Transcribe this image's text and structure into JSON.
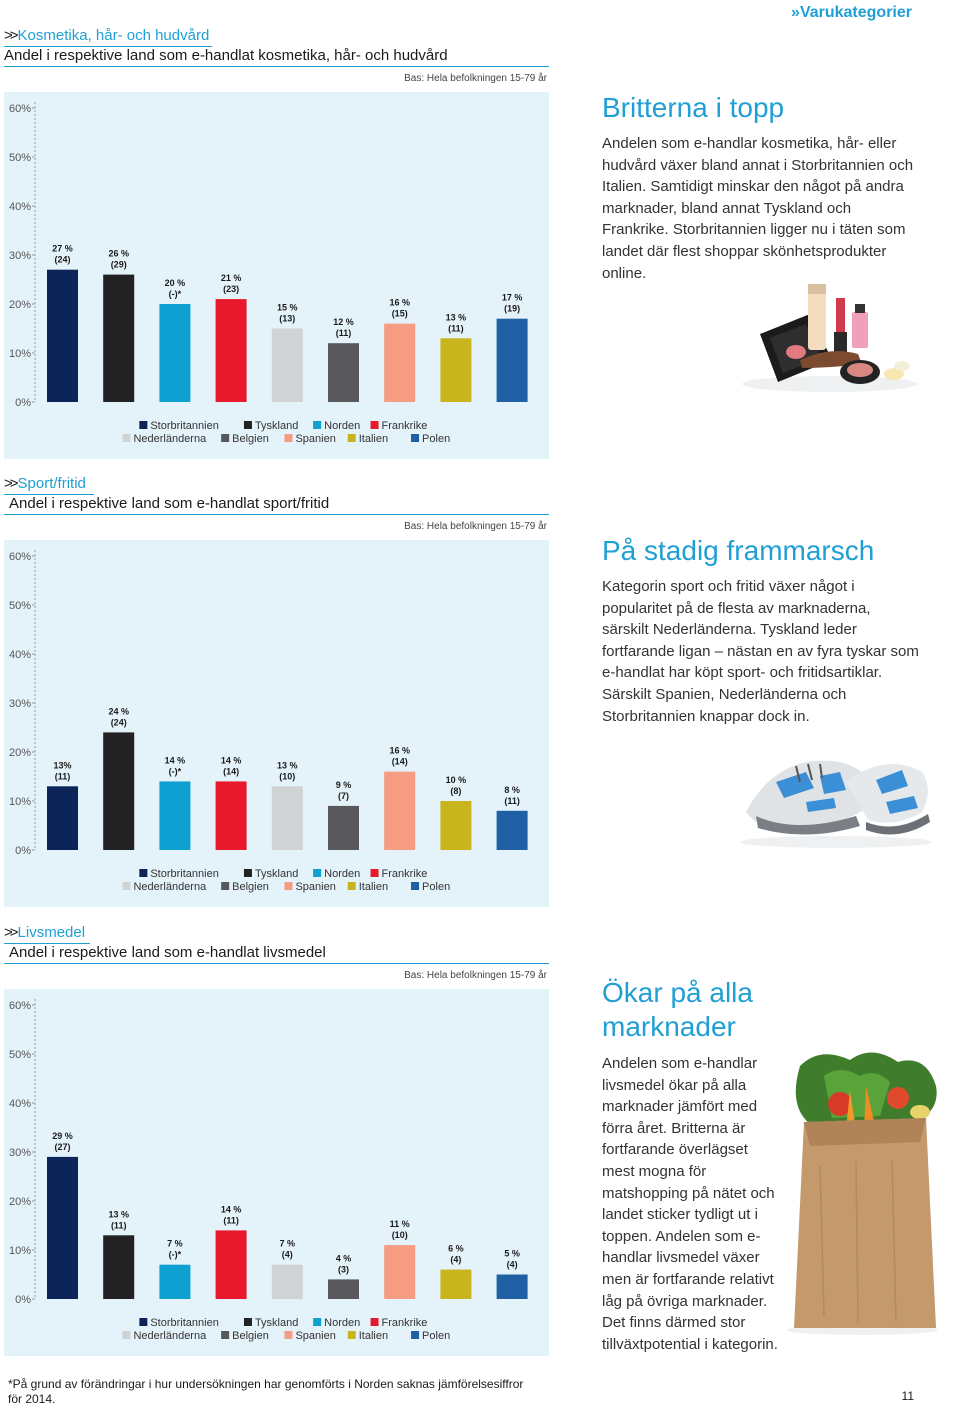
{
  "header": {
    "category": "Varukategorier"
  },
  "legend_rows": [
    [
      "Storbritannien",
      "Tyskland",
      "Norden",
      "Frankrike"
    ],
    [
      "Nederländerna",
      "Belgien",
      "Spanien",
      "Italien",
      "Polen"
    ]
  ],
  "colors": {
    "Storbritannien": "#0c2457",
    "Tyskland": "#222222",
    "Norden": "#0ea0d0",
    "Frankrike": "#e8192c",
    "Nederländerna": "#d0d2d4",
    "Belgien": "#58585a",
    "Spanien": "#f59c83",
    "Italien": "#c8b41c",
    "Polen": "#1f5fa3"
  },
  "sections": [
    {
      "title": "Kosmetika, hår- och hudvård",
      "subtitle": "Andel i respektive land som e-handlat kosmetika, hår- och hudvård",
      "heading": "Britterna i topp",
      "body": "Andelen som e-handlar kosmetika, hår- eller hudvård växer bland annat i Storbritannien och Italien. Samtidigt minskar den något på andra marknader, bland annat Tyskland och Frankrike. Storbritannien ligger nu i täten som landet där flest shoppar skönhetsprodukter online."
    },
    {
      "title": "Sport/fritid",
      "subtitle": "Andel i respektive land som e-handlat sport/fritid",
      "heading": "På stadig frammarsch",
      "body": "Kategorin sport och fritid växer något i popularitet på de flesta av marknaderna, särskilt Nederländerna. Tyskland leder fortfarande ligan – nästan en av fyra tyskar som e-handlat har köpt sport- och fritidsartiklar. Särskilt Spanien, Nederländerna och Storbritannien knappar dock in."
    },
    {
      "title": "Livsmedel",
      "subtitle": "Andel i respektive land som e-handlat livsmedel",
      "heading": "Ökar på alla marknader",
      "body": "Andelen som e-handlar livsmedel ökar på alla marknader jämfört med förra året. Britterna är fortfarande överlägset mest mogna för matshopping på nätet och landet sticker tydligt ut i toppen. Andelen som e-handlar livsmedel växer men är fortfarande relativt låg på övriga marknader. Det finns därmed stor tillväxtpotential i kategorin."
    }
  ],
  "chart_data": [
    {
      "type": "bar",
      "base_note": "Bas: Hela befolkningen 15-79 år",
      "categories": [
        "Storbritannien",
        "Tyskland",
        "Norden",
        "Frankrike",
        "Nederländerna",
        "Belgien",
        "Spanien",
        "Italien",
        "Polen"
      ],
      "values": [
        27,
        26,
        20,
        21,
        15,
        12,
        16,
        13,
        17
      ],
      "value_labels": [
        "27 %",
        "26 %",
        "20 %",
        "21 %",
        "15 %",
        "12 %",
        "16 %",
        "13 %",
        "17 %"
      ],
      "prev_labels": [
        "(24)",
        "(29)",
        "(-)*",
        "(23)",
        "(13)",
        "(11)",
        "(15)",
        "(11)",
        "(19)"
      ],
      "yticks": [
        0,
        10,
        20,
        30,
        40,
        50,
        60
      ],
      "ytick_labels": [
        "0%",
        "10%",
        "20%",
        "30%",
        "40%",
        "50%",
        "60%"
      ],
      "ylim": [
        0,
        60
      ],
      "legend_placement": "bottom"
    },
    {
      "type": "bar",
      "base_note": "Bas: Hela befolkningen 15-79 år",
      "categories": [
        "Storbritannien",
        "Tyskland",
        "Norden",
        "Frankrike",
        "Nederländerna",
        "Belgien",
        "Spanien",
        "Italien",
        "Polen"
      ],
      "values": [
        13,
        24,
        14,
        14,
        13,
        9,
        16,
        10,
        8
      ],
      "value_labels": [
        "13%",
        "24 %",
        "14 %",
        "14 %",
        "13 %",
        "9 %",
        "16 %",
        "10 %",
        "8 %"
      ],
      "prev_labels": [
        "(11)",
        "(24)",
        "(-)*",
        "(14)",
        "(10)",
        "(7)",
        "(14)",
        "(8)",
        "(11)"
      ],
      "yticks": [
        0,
        10,
        20,
        30,
        40,
        50,
        60
      ],
      "ytick_labels": [
        "0%",
        "10%",
        "20%",
        "30%",
        "40%",
        "50%",
        "60%"
      ],
      "ylim": [
        0,
        60
      ],
      "legend_placement": "bottom"
    },
    {
      "type": "bar",
      "base_note": "Bas: Hela befolkningen 15-79 år",
      "categories": [
        "Storbritannien",
        "Tyskland",
        "Norden",
        "Frankrike",
        "Nederländerna",
        "Belgien",
        "Spanien",
        "Italien",
        "Polen"
      ],
      "values": [
        29,
        13,
        7,
        14,
        7,
        4,
        11,
        6,
        5
      ],
      "value_labels": [
        "29 %",
        "13 %",
        "7 %",
        "14 %",
        "7 %",
        "4 %",
        "11 %",
        "6 %",
        "5 %"
      ],
      "prev_labels": [
        "(27)",
        "(11)",
        "(-)*",
        "(11)",
        "(4)",
        "(3)",
        "(10)",
        "(4)",
        "(4)"
      ],
      "yticks": [
        0,
        10,
        20,
        30,
        40,
        50,
        60
      ],
      "ytick_labels": [
        "0%",
        "10%",
        "20%",
        "30%",
        "40%",
        "50%",
        "60%"
      ],
      "ylim": [
        0,
        60
      ],
      "legend_placement": "bottom"
    }
  ],
  "footnote": "*På grund av förändringar i hur undersökningen har genomförts i Norden saknas jämförelsesiffror för 2014.",
  "page_number": "11"
}
